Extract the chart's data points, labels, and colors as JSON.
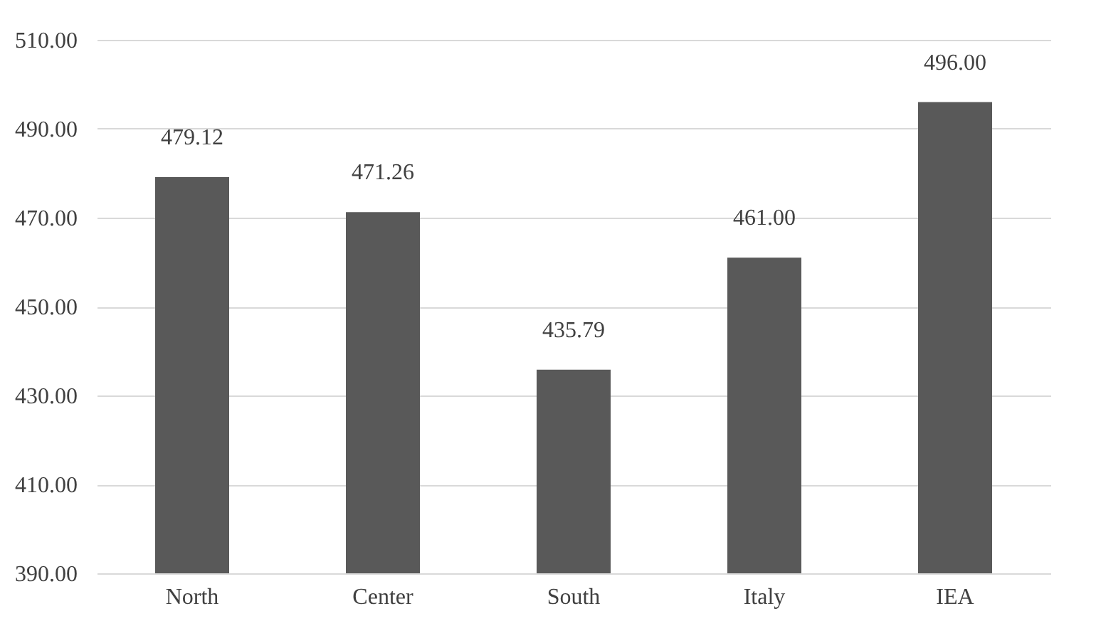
{
  "chart_data": {
    "type": "bar",
    "categories": [
      "North",
      "Center",
      "South",
      "Italy",
      "IEA"
    ],
    "values": [
      479.12,
      471.26,
      435.79,
      461,
      496
    ],
    "value_labels": [
      "479.12",
      "471.26",
      "435.79",
      "461.00",
      "496.00"
    ],
    "color": "#595959",
    "ylim": [
      390,
      510
    ],
    "yticks": [
      {
        "value": 390,
        "label": "390.00"
      },
      {
        "value": 410,
        "label": "410.00"
      },
      {
        "value": 430,
        "label": "430.00"
      },
      {
        "value": 450,
        "label": "450.00"
      },
      {
        "value": 470,
        "label": "470.00"
      },
      {
        "value": 490,
        "label": "490.00"
      },
      {
        "value": 510,
        "label": "510.00"
      }
    ],
    "grid": "y"
  }
}
